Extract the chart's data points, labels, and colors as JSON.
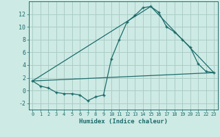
{
  "title": "",
  "xlabel": "Humidex (Indice chaleur)",
  "background_color": "#ceeae4",
  "grid_color": "#aaccc6",
  "line_color": "#1a6b6b",
  "xlim": [
    -0.5,
    23.5
  ],
  "ylim": [
    -3,
    14
  ],
  "xticks": [
    0,
    1,
    2,
    3,
    4,
    5,
    6,
    7,
    8,
    9,
    10,
    11,
    12,
    13,
    14,
    15,
    16,
    17,
    18,
    19,
    20,
    21,
    22,
    23
  ],
  "yticks": [
    -2,
    0,
    2,
    4,
    6,
    8,
    10,
    12
  ],
  "line1_x": [
    0,
    1,
    2,
    3,
    4,
    5,
    6,
    7,
    8,
    9,
    10,
    11,
    12,
    13,
    14,
    15,
    16,
    17,
    18,
    19,
    20,
    21,
    22,
    23
  ],
  "line1_y": [
    1.5,
    0.7,
    0.4,
    -0.3,
    -0.5,
    -0.5,
    -0.7,
    -1.6,
    -1.0,
    -0.7,
    5.0,
    8.0,
    10.8,
    11.8,
    13.0,
    13.2,
    12.3,
    10.0,
    9.2,
    8.0,
    6.8,
    4.2,
    3.0,
    2.8
  ],
  "line2_x": [
    0,
    23
  ],
  "line2_y": [
    1.5,
    2.8
  ],
  "line3_x": [
    0,
    15,
    23
  ],
  "line3_y": [
    1.5,
    13.2,
    2.8
  ]
}
